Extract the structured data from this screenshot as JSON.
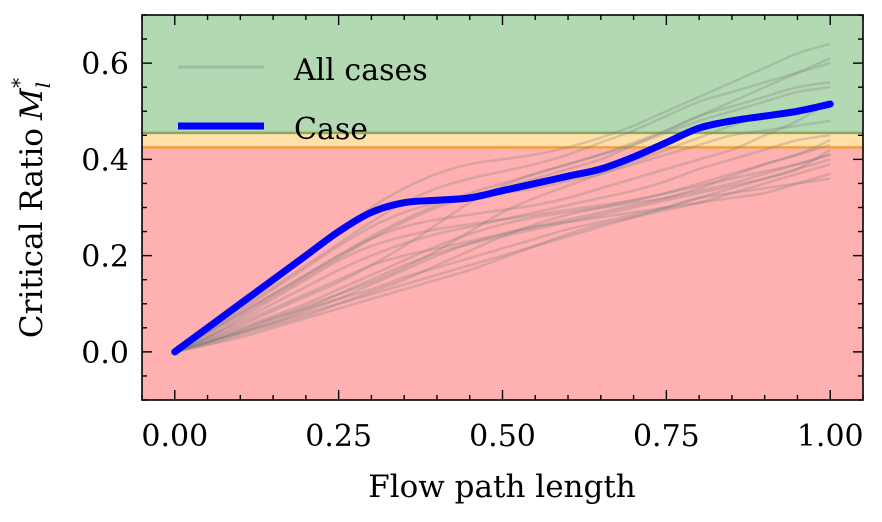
{
  "chart_data": {
    "type": "line",
    "title": "",
    "xlabel": "Flow path length",
    "ylabel": "Critical Ratio",
    "ylabel_symbol": "M",
    "ylabel_sub": "l",
    "ylabel_sup": "*",
    "xlim": [
      -0.05,
      1.05
    ],
    "ylim": [
      -0.1,
      0.7
    ],
    "xticks": [
      0.0,
      0.25,
      0.5,
      0.75,
      1.0
    ],
    "xtick_labels": [
      "0.00",
      "0.25",
      "0.50",
      "0.75",
      "1.00"
    ],
    "yticks": [
      0.0,
      0.2,
      0.4,
      0.6
    ],
    "ytick_labels": [
      "0.0",
      "0.2",
      "0.4",
      "0.6"
    ],
    "grid": false,
    "legend": {
      "position": "top-left",
      "entries": [
        "All cases",
        "Case"
      ]
    },
    "bands": [
      {
        "y0": 0.455,
        "y1": 0.7,
        "color": "#b3d9b3"
      },
      {
        "y0": 0.425,
        "y1": 0.455,
        "color": "#ffe0a8"
      },
      {
        "y0": -0.1,
        "y1": 0.425,
        "color": "#ffb0b0"
      }
    ],
    "thresholds": [
      {
        "y": 0.455,
        "color": "#8aa860"
      },
      {
        "y": 0.425,
        "color": "#f0a040"
      }
    ],
    "colors": {
      "background_series": "#808080",
      "highlight": "#0000ff"
    },
    "highlight": {
      "name": "Case",
      "x": [
        0.0,
        0.05,
        0.1,
        0.15,
        0.2,
        0.25,
        0.3,
        0.35,
        0.4,
        0.45,
        0.5,
        0.55,
        0.6,
        0.65,
        0.7,
        0.75,
        0.8,
        0.85,
        0.9,
        0.95,
        1.0
      ],
      "y": [
        0.0,
        0.05,
        0.1,
        0.15,
        0.2,
        0.25,
        0.29,
        0.31,
        0.315,
        0.32,
        0.335,
        0.35,
        0.365,
        0.38,
        0.405,
        0.435,
        0.465,
        0.48,
        0.49,
        0.5,
        0.515
      ]
    },
    "series_x": [
      0.0,
      0.05,
      0.1,
      0.15,
      0.2,
      0.25,
      0.3,
      0.35,
      0.4,
      0.45,
      0.5,
      0.55,
      0.6,
      0.65,
      0.7,
      0.75,
      0.8,
      0.85,
      0.9,
      0.95,
      1.0
    ],
    "background_series": [
      [
        0.0,
        0.02,
        0.04,
        0.06,
        0.08,
        0.1,
        0.12,
        0.14,
        0.16,
        0.18,
        0.2,
        0.22,
        0.24,
        0.26,
        0.28,
        0.3,
        0.32,
        0.33,
        0.34,
        0.35,
        0.36
      ],
      [
        0.0,
        0.02,
        0.045,
        0.07,
        0.09,
        0.11,
        0.13,
        0.155,
        0.175,
        0.195,
        0.215,
        0.235,
        0.255,
        0.27,
        0.285,
        0.3,
        0.32,
        0.34,
        0.36,
        0.38,
        0.4
      ],
      [
        0.0,
        0.03,
        0.06,
        0.09,
        0.12,
        0.15,
        0.18,
        0.2,
        0.215,
        0.23,
        0.245,
        0.26,
        0.27,
        0.28,
        0.29,
        0.3,
        0.31,
        0.32,
        0.33,
        0.35,
        0.37
      ],
      [
        0.0,
        0.015,
        0.03,
        0.05,
        0.07,
        0.09,
        0.11,
        0.13,
        0.15,
        0.17,
        0.195,
        0.22,
        0.245,
        0.265,
        0.28,
        0.295,
        0.31,
        0.33,
        0.35,
        0.37,
        0.39
      ],
      [
        0.0,
        0.025,
        0.05,
        0.075,
        0.1,
        0.13,
        0.16,
        0.19,
        0.22,
        0.245,
        0.265,
        0.28,
        0.29,
        0.3,
        0.31,
        0.32,
        0.335,
        0.35,
        0.37,
        0.39,
        0.41
      ],
      [
        0.0,
        0.02,
        0.04,
        0.065,
        0.09,
        0.12,
        0.15,
        0.18,
        0.205,
        0.225,
        0.24,
        0.255,
        0.27,
        0.285,
        0.3,
        0.315,
        0.33,
        0.345,
        0.36,
        0.38,
        0.42
      ],
      [
        0.0,
        0.03,
        0.07,
        0.11,
        0.15,
        0.19,
        0.22,
        0.24,
        0.255,
        0.265,
        0.275,
        0.285,
        0.295,
        0.305,
        0.315,
        0.33,
        0.35,
        0.37,
        0.39,
        0.41,
        0.44
      ],
      [
        0.0,
        0.04,
        0.08,
        0.12,
        0.16,
        0.2,
        0.235,
        0.26,
        0.275,
        0.285,
        0.295,
        0.305,
        0.32,
        0.34,
        0.36,
        0.38,
        0.4,
        0.42,
        0.45,
        0.48,
        0.52
      ],
      [
        0.0,
        0.035,
        0.075,
        0.115,
        0.155,
        0.195,
        0.235,
        0.27,
        0.3,
        0.32,
        0.33,
        0.34,
        0.355,
        0.37,
        0.39,
        0.41,
        0.43,
        0.45,
        0.46,
        0.47,
        0.48
      ],
      [
        0.0,
        0.02,
        0.045,
        0.07,
        0.095,
        0.12,
        0.145,
        0.175,
        0.21,
        0.25,
        0.29,
        0.32,
        0.345,
        0.37,
        0.395,
        0.42,
        0.445,
        0.47,
        0.49,
        0.5,
        0.51
      ],
      [
        0.0,
        0.025,
        0.055,
        0.085,
        0.115,
        0.145,
        0.18,
        0.22,
        0.265,
        0.31,
        0.345,
        0.37,
        0.39,
        0.41,
        0.43,
        0.455,
        0.48,
        0.5,
        0.52,
        0.54,
        0.55
      ],
      [
        0.0,
        0.04,
        0.085,
        0.13,
        0.175,
        0.22,
        0.26,
        0.29,
        0.31,
        0.325,
        0.34,
        0.36,
        0.38,
        0.4,
        0.43,
        0.46,
        0.49,
        0.51,
        0.53,
        0.55,
        0.56
      ],
      [
        0.0,
        0.045,
        0.09,
        0.135,
        0.18,
        0.225,
        0.27,
        0.31,
        0.34,
        0.36,
        0.375,
        0.39,
        0.41,
        0.435,
        0.46,
        0.49,
        0.52,
        0.54,
        0.56,
        0.58,
        0.6
      ],
      [
        0.0,
        0.05,
        0.1,
        0.15,
        0.2,
        0.25,
        0.3,
        0.34,
        0.37,
        0.39,
        0.4,
        0.41,
        0.425,
        0.445,
        0.47,
        0.5,
        0.53,
        0.56,
        0.59,
        0.62,
        0.64
      ],
      [
        0.0,
        0.04,
        0.08,
        0.12,
        0.16,
        0.2,
        0.24,
        0.275,
        0.305,
        0.33,
        0.35,
        0.37,
        0.39,
        0.41,
        0.435,
        0.46,
        0.49,
        0.52,
        0.55,
        0.58,
        0.61
      ],
      [
        0.0,
        0.015,
        0.035,
        0.055,
        0.075,
        0.1,
        0.125,
        0.15,
        0.18,
        0.21,
        0.24,
        0.265,
        0.285,
        0.3,
        0.315,
        0.33,
        0.345,
        0.36,
        0.375,
        0.39,
        0.41
      ],
      [
        0.0,
        0.03,
        0.065,
        0.1,
        0.135,
        0.17,
        0.2,
        0.225,
        0.245,
        0.26,
        0.275,
        0.29,
        0.305,
        0.32,
        0.335,
        0.355,
        0.38,
        0.4,
        0.42,
        0.44,
        0.45
      ],
      [
        0.0,
        0.02,
        0.04,
        0.06,
        0.085,
        0.11,
        0.14,
        0.17,
        0.2,
        0.225,
        0.245,
        0.26,
        0.275,
        0.29,
        0.305,
        0.32,
        0.34,
        0.365,
        0.39,
        0.41,
        0.43
      ]
    ]
  }
}
